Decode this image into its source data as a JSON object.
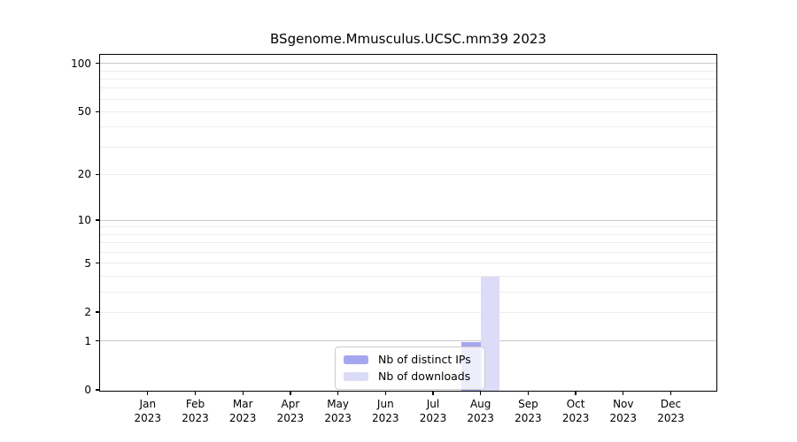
{
  "chart_data": {
    "type": "bar",
    "title": "BSgenome.Mmusculus.UCSC.mm39 2023",
    "categories": [
      "Jan",
      "Feb",
      "Mar",
      "Apr",
      "May",
      "Jun",
      "Jul",
      "Aug",
      "Sep",
      "Oct",
      "Nov",
      "Dec"
    ],
    "category_year": "2023",
    "series": [
      {
        "name": "Nb of distinct IPs",
        "color": "#a6a6ee",
        "values": [
          0,
          0,
          0,
          0,
          0,
          0,
          0,
          1,
          0,
          0,
          0,
          0
        ]
      },
      {
        "name": "Nb of downloads",
        "color": "#dcdcf8",
        "values": [
          0,
          0,
          0,
          0,
          0,
          0,
          0,
          4,
          0,
          0,
          0,
          0
        ]
      }
    ],
    "yscale": "log10(1+x)",
    "ylim": [
      0,
      113
    ],
    "yticks": [
      0,
      1,
      2,
      5,
      10,
      20,
      50,
      100
    ],
    "minor_gridlines": [
      2,
      3,
      4,
      5,
      6,
      7,
      8,
      9,
      20,
      30,
      40,
      50,
      60,
      70,
      80,
      90
    ],
    "major_gridlines": [
      1,
      10,
      100
    ],
    "grid": true,
    "legend_position": "bottom-center"
  },
  "colors": {
    "axis": "#000000",
    "grid_minor": "#ededed",
    "grid_major": "#c9c9c9",
    "legend_border": "#cccccc",
    "background": "#ffffff"
  }
}
